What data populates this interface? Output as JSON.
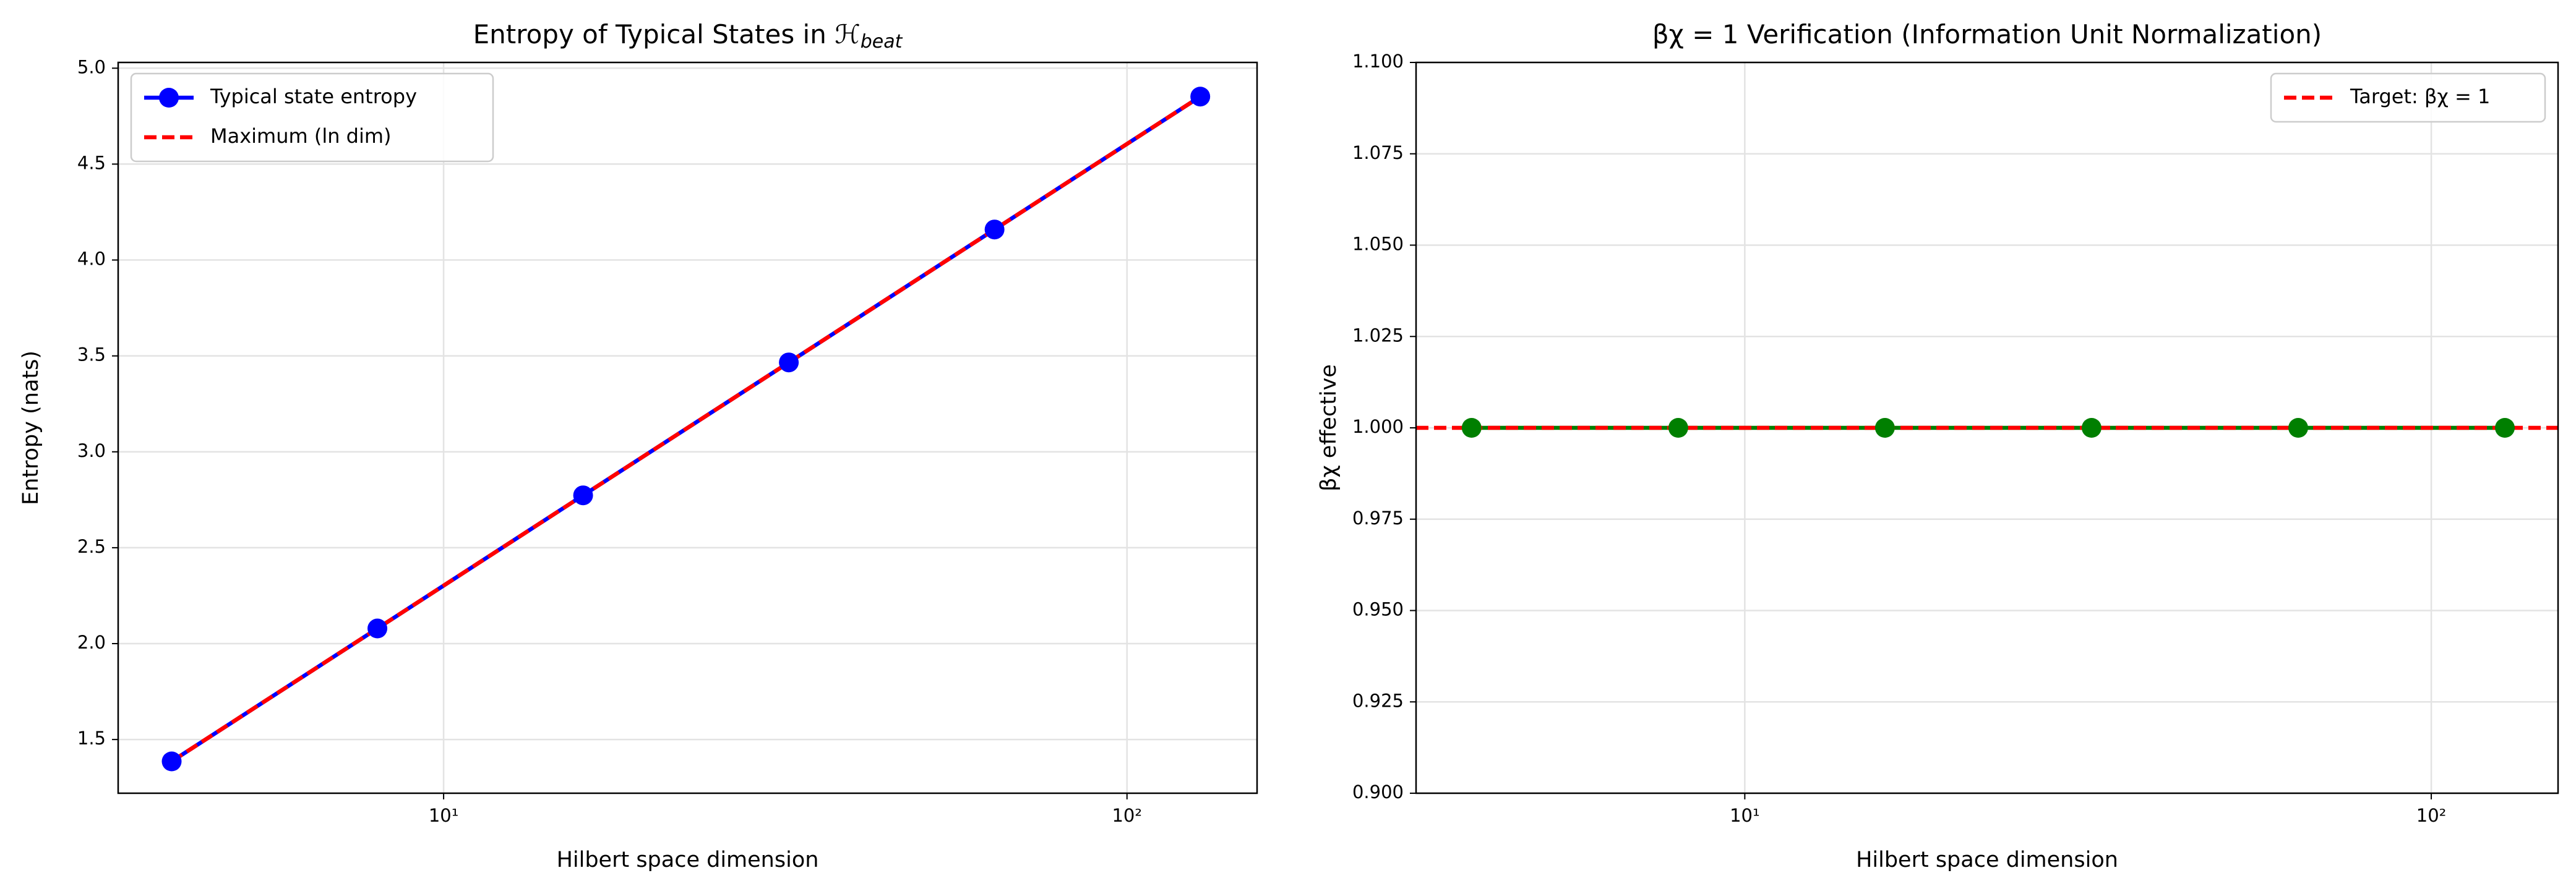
{
  "chart_data": [
    {
      "type": "line",
      "title": "Entropy of Typical States in ℋ",
      "title_subscript": "beat",
      "xlabel": "Hilbert space dimension",
      "ylabel": "Entropy (nats)",
      "xscale": "log",
      "grid": true,
      "legend": "upper left",
      "x": [
        4,
        8,
        16,
        32,
        64,
        128
      ],
      "series": [
        {
          "name": "Typical state entropy",
          "color": "#0000ff",
          "linestyle": "solid",
          "marker": true,
          "values": [
            1.386,
            2.079,
            2.773,
            3.466,
            4.159,
            4.852
          ]
        },
        {
          "name": "Maximum (ln dim)",
          "color": "#ff0000",
          "linestyle": "dashed",
          "marker": false,
          "values": [
            1.386,
            2.079,
            2.773,
            3.466,
            4.159,
            4.852
          ]
        }
      ],
      "xlim": [
        3.34,
        155
      ],
      "ylim": [
        1.22,
        5.03
      ],
      "xticks": [
        {
          "value": 10,
          "label": "10¹"
        },
        {
          "value": 100,
          "label": "10²"
        }
      ],
      "yticks": [
        1.5,
        {
          "value": 2,
          "label": "2.0"
        },
        2.5,
        {
          "value": 3,
          "label": "3.0"
        },
        3.5,
        {
          "value": 4,
          "label": "4.0"
        },
        4.5,
        {
          "value": 5,
          "label": "5.0"
        }
      ]
    },
    {
      "type": "line",
      "title": "βχ = 1 Verification (Information Unit Normalization)",
      "xlabel": "Hilbert space dimension",
      "ylabel": "βχ effective",
      "xscale": "log",
      "grid": true,
      "legend": "upper right",
      "x": [
        4,
        8,
        16,
        32,
        64,
        128
      ],
      "series": [
        {
          "color": "#007f00",
          "linestyle": "solid",
          "marker": true,
          "values": [
            1,
            1,
            1,
            1,
            1,
            1
          ]
        }
      ],
      "hline": {
        "name": "Target: βχ = 1",
        "value": 1,
        "color": "#ff0000",
        "linestyle": "dashed"
      },
      "xlim": [
        3.32,
        153
      ],
      "ylim": [
        0.9,
        1.1
      ],
      "xticks": [
        {
          "value": 10,
          "label": "10¹"
        },
        {
          "value": 100,
          "label": "10²"
        }
      ],
      "yticks": [
        {
          "value": 0.9,
          "label": "0.900"
        },
        {
          "value": 0.925,
          "label": "0.925"
        },
        {
          "value": 0.95,
          "label": "0.950"
        },
        {
          "value": 0.975,
          "label": "0.975"
        },
        {
          "value": 1,
          "label": "1.000"
        },
        {
          "value": 1.025,
          "label": "1.025"
        },
        {
          "value": 1.05,
          "label": "1.050"
        },
        {
          "value": 1.075,
          "label": "1.075"
        },
        {
          "value": 1.1,
          "label": "1.100"
        }
      ]
    }
  ]
}
